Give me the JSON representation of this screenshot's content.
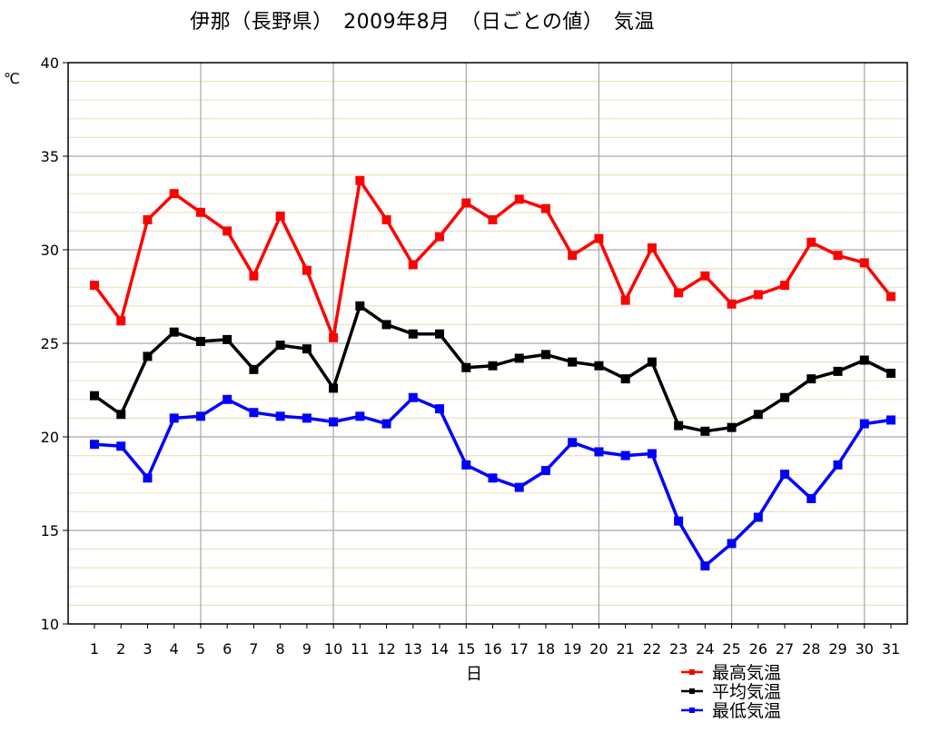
{
  "chart_data": {
    "type": "line",
    "title": "伊那（長野県）　2009年8月　（日ごとの値）　気温",
    "xlabel": "日",
    "ylabel": "℃",
    "ylim": [
      10,
      40
    ],
    "yticks": [
      10,
      15,
      20,
      25,
      30,
      35,
      40
    ],
    "x": [
      1,
      2,
      3,
      4,
      5,
      6,
      7,
      8,
      9,
      10,
      11,
      12,
      13,
      14,
      15,
      16,
      17,
      18,
      19,
      20,
      21,
      22,
      23,
      24,
      25,
      26,
      27,
      28,
      29,
      30,
      31
    ],
    "grid": true,
    "legend_position": "bottom-right",
    "series": [
      {
        "name": "最高気温",
        "color": "#ff0000",
        "values": [
          28.1,
          26.2,
          31.6,
          33.0,
          32.0,
          31.0,
          28.6,
          31.8,
          28.9,
          25.3,
          33.7,
          31.6,
          29.2,
          30.7,
          32.5,
          31.6,
          32.7,
          32.2,
          29.7,
          30.6,
          27.3,
          30.1,
          27.7,
          28.6,
          27.1,
          27.6,
          28.1,
          30.4,
          29.7,
          29.3,
          27.5
        ]
      },
      {
        "name": "平均気温",
        "color": "#000000",
        "values": [
          22.2,
          21.2,
          24.3,
          25.6,
          25.1,
          25.2,
          23.6,
          24.9,
          24.7,
          22.6,
          27.0,
          26.0,
          25.5,
          25.5,
          23.7,
          23.8,
          24.2,
          24.4,
          24.0,
          23.8,
          23.1,
          24.0,
          20.6,
          20.3,
          20.5,
          21.2,
          22.1,
          23.1,
          23.5,
          24.1,
          23.4
        ]
      },
      {
        "name": "最低気温",
        "color": "#0000ff",
        "values": [
          19.6,
          19.5,
          17.8,
          21.0,
          21.1,
          22.0,
          21.3,
          21.1,
          21.0,
          20.8,
          21.1,
          20.7,
          22.1,
          21.5,
          18.5,
          17.8,
          17.3,
          18.2,
          19.7,
          19.2,
          19.0,
          19.1,
          15.5,
          13.1,
          14.3,
          15.7,
          18.0,
          16.7,
          18.5,
          20.7,
          20.9
        ]
      }
    ]
  }
}
